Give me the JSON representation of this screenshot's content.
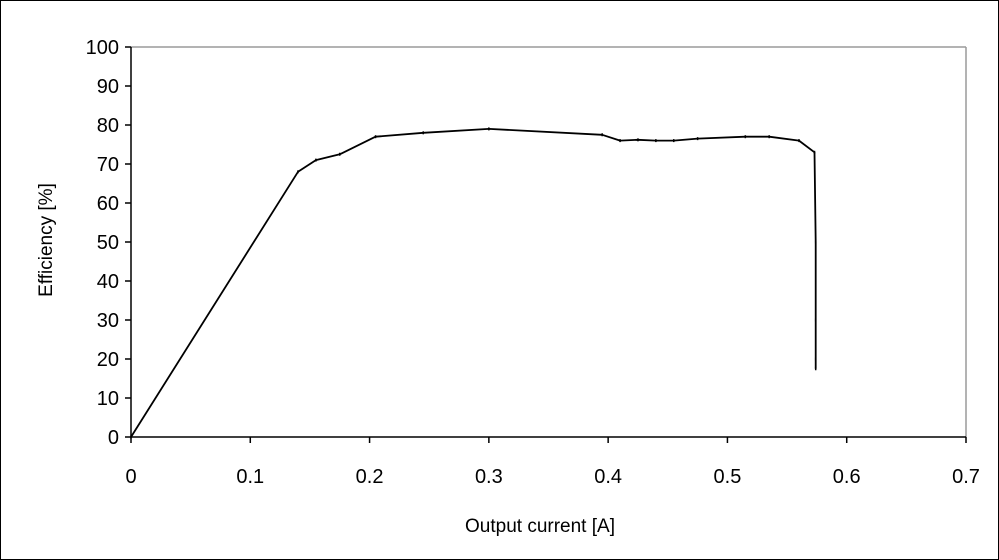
{
  "chart_data": {
    "type": "line",
    "title": "",
    "xlabel": "Output current [A]",
    "ylabel": "Efficiency [%]",
    "xlim": [
      0,
      0.7
    ],
    "ylim": [
      0,
      100
    ],
    "x_ticks": [
      "0",
      "0.1",
      "0.2",
      "0.3",
      "0.4",
      "0.5",
      "0.6",
      "0.7"
    ],
    "y_ticks": [
      "0",
      "10",
      "20",
      "30",
      "40",
      "50",
      "60",
      "70",
      "80",
      "90",
      "100"
    ],
    "grid": false,
    "legend": "none",
    "series": [
      {
        "color": "#000000",
        "x": [
          0.0,
          0.14,
          0.155,
          0.175,
          0.205,
          0.245,
          0.3,
          0.395,
          0.41,
          0.425,
          0.44,
          0.455,
          0.475,
          0.515,
          0.535,
          0.56,
          0.573,
          0.574,
          0.574,
          0.574,
          0.574
        ],
        "y": [
          0,
          68,
          71,
          72.5,
          77,
          78,
          79,
          77.5,
          76,
          76.2,
          76,
          76,
          76.5,
          77,
          77,
          76,
          73,
          50,
          30,
          20,
          17.5
        ]
      }
    ]
  }
}
